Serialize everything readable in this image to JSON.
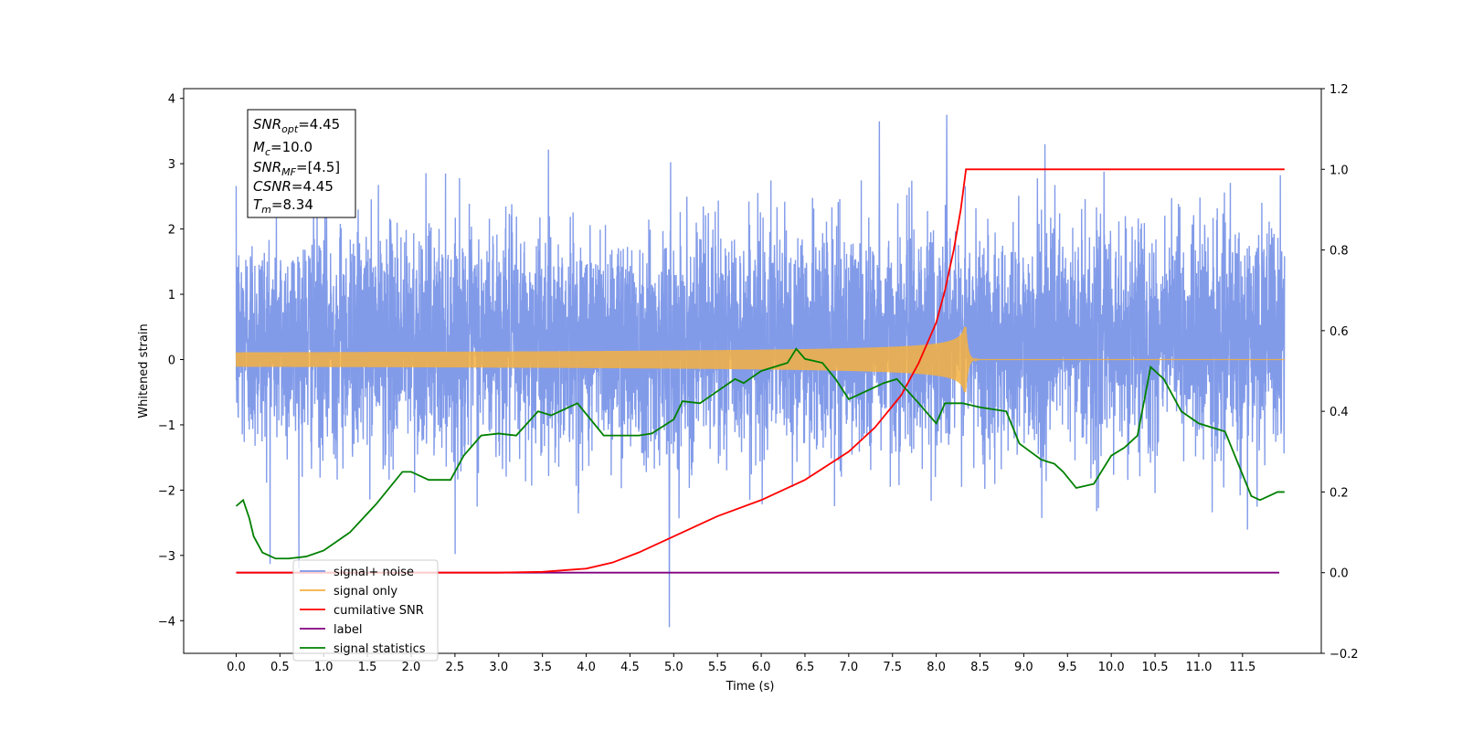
{
  "chart_data": {
    "type": "line",
    "xlabel": "Time (s)",
    "ylabel": "Whitened strain",
    "xlim": [
      -0.6,
      12.4
    ],
    "ylim": [
      -4.5,
      4.15
    ],
    "y2lim": [
      -0.2,
      1.2
    ],
    "x_ticks": [
      0.0,
      0.5,
      1.0,
      1.5,
      2.0,
      2.5,
      3.0,
      3.5,
      4.0,
      4.5,
      5.0,
      5.5,
      6.0,
      6.5,
      7.0,
      7.5,
      8.0,
      8.5,
      9.0,
      9.5,
      10.0,
      10.5,
      11.0,
      11.5
    ],
    "x_tick_labels": [
      "0.0",
      "0.5",
      "1.0",
      "1.5",
      "2.0",
      "2.5",
      "3.0",
      "3.5",
      "4.0",
      "4.5",
      "5.0",
      "5.5",
      "6.0",
      "6.5",
      "7.0",
      "7.5",
      "8.0",
      "8.5",
      "9.0",
      "9.5",
      "10.0",
      "10.5",
      "11.0",
      "11.5"
    ],
    "y_ticks": [
      4,
      3,
      2,
      1,
      0,
      -1,
      -2,
      -3,
      -4
    ],
    "y_tick_labels": [
      "4",
      "3",
      "2",
      "1",
      "0",
      "−1",
      "−2",
      "−3",
      "−4"
    ],
    "y2_ticks": [
      1.2,
      1.0,
      0.8,
      0.6,
      0.4,
      0.2,
      0.0,
      -0.2
    ],
    "y2_tick_labels": [
      "1.2",
      "1.0",
      "0.8",
      "0.6",
      "0.4",
      "0.2",
      "0.0",
      "−0.2"
    ],
    "legend_placement": "lower-left",
    "annotation": {
      "lines": [
        {
          "var": "SNR",
          "sub": "opt",
          "value": "=4.45"
        },
        {
          "var": "M",
          "sub": "c",
          "value": "=10.0"
        },
        {
          "var": "SNR",
          "sub": "MF",
          "value": "=[4.5]"
        },
        {
          "var": "CSNR",
          "sub": "",
          "value": "=4.45"
        },
        {
          "var": "T",
          "sub": "m",
          "value": "=8.34"
        }
      ]
    },
    "series": [
      {
        "name": "signal+ noise",
        "color": "#7b96e8",
        "axis": "left",
        "x_range": [
          0.0,
          11.98
        ],
        "approx_range": [
          -4.1,
          3.75
        ],
        "notable_peaks": [
          [
            8.12,
            3.75
          ],
          [
            7.35,
            3.65
          ],
          [
            4.95,
            -4.1
          ]
        ]
      },
      {
        "name": "signal only",
        "color": "#f5b041",
        "axis": "left",
        "chirp_start": 0.0,
        "merger_time": 8.34,
        "peak_amplitude": 0.5
      },
      {
        "name": "cumilative SNR",
        "color": "#ff0000",
        "axis": "right",
        "x": [
          0.0,
          3.0,
          3.5,
          4.0,
          4.3,
          4.6,
          4.9,
          5.2,
          5.5,
          6.0,
          6.5,
          7.0,
          7.3,
          7.6,
          7.8,
          8.0,
          8.1,
          8.2,
          8.28,
          8.34,
          8.5,
          11.98
        ],
        "y": [
          0.0,
          0.0,
          0.002,
          0.01,
          0.025,
          0.05,
          0.08,
          0.11,
          0.14,
          0.18,
          0.23,
          0.3,
          0.36,
          0.44,
          0.52,
          0.62,
          0.7,
          0.8,
          0.9,
          1.0,
          1.0,
          1.0
        ]
      },
      {
        "name": "label",
        "color": "#800080",
        "axis": "right",
        "x": [
          0.0,
          11.92
        ],
        "y": [
          0.0,
          0.0
        ]
      },
      {
        "name": "signal statistics",
        "color": "#008000",
        "axis": "right",
        "x": [
          0.0,
          0.08,
          0.15,
          0.2,
          0.3,
          0.45,
          0.6,
          0.8,
          1.0,
          1.3,
          1.6,
          1.9,
          2.0,
          2.2,
          2.45,
          2.6,
          2.8,
          3.0,
          3.2,
          3.45,
          3.6,
          3.9,
          4.2,
          4.35,
          4.6,
          4.75,
          5.0,
          5.1,
          5.3,
          5.5,
          5.7,
          5.8,
          6.0,
          6.3,
          6.4,
          6.5,
          6.7,
          6.85,
          7.0,
          7.2,
          7.4,
          7.55,
          7.8,
          8.0,
          8.1,
          8.3,
          8.5,
          8.8,
          8.95,
          9.2,
          9.35,
          9.45,
          9.6,
          9.8,
          10.0,
          10.15,
          10.3,
          10.45,
          10.6,
          10.8,
          11.0,
          11.3,
          11.6,
          11.7,
          11.9,
          11.98
        ],
        "y": [
          0.165,
          0.18,
          0.135,
          0.09,
          0.05,
          0.035,
          0.035,
          0.04,
          0.055,
          0.1,
          0.17,
          0.25,
          0.25,
          0.23,
          0.23,
          0.29,
          0.34,
          0.345,
          0.34,
          0.4,
          0.39,
          0.42,
          0.34,
          0.34,
          0.34,
          0.345,
          0.38,
          0.425,
          0.42,
          0.45,
          0.48,
          0.47,
          0.5,
          0.52,
          0.555,
          0.53,
          0.52,
          0.48,
          0.43,
          0.45,
          0.47,
          0.48,
          0.42,
          0.37,
          0.42,
          0.42,
          0.41,
          0.4,
          0.32,
          0.28,
          0.27,
          0.25,
          0.21,
          0.22,
          0.29,
          0.31,
          0.34,
          0.51,
          0.48,
          0.4,
          0.37,
          0.35,
          0.19,
          0.18,
          0.2,
          0.2
        ]
      }
    ]
  }
}
